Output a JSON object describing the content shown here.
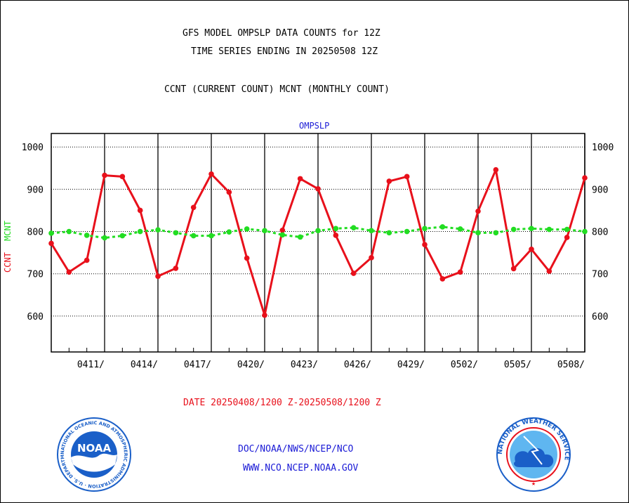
{
  "header": {
    "title_line1": "GFS MODEL OMPSLP DATA COUNTS for 12Z",
    "title_line2": "TIME SERIES ENDING IN 20250508 12Z",
    "subtitle": "CCNT (CURRENT COUNT) MCNT (MONTHLY COUNT)"
  },
  "footer": {
    "date_range": "DATE 20250408/1200 Z-20250508/1200 Z",
    "link1": "DOC/NOAA/NWS/NCEP/NCO",
    "link2": "WWW.NCO.NCEP.NOAA.GOV"
  },
  "logos": {
    "noaa": "NOAA",
    "noaa_ring": "NATIONAL OCEANIC AND ATMOSPHERIC ADMINISTRATION · U.S. DEPARTMENT OF COMMERCE ·",
    "nws_ring": "NATIONAL WEATHER SERVICE"
  },
  "colors": {
    "ccnt": "#e8101b",
    "mcnt": "#22dd22",
    "label_blue": "#1a1ad6",
    "logo_blue": "#1a5fc8",
    "axis": "#000000"
  },
  "chart_data": {
    "type": "line",
    "title": "OMPSLP",
    "ylabel_ccnt": "CCNT",
    "ylabel_mcnt": "MCNT",
    "ylim": [
      515,
      1032
    ],
    "yticks": [
      600,
      700,
      800,
      900,
      1000
    ],
    "x_start": "2025-04-08 12Z",
    "x_end": "2025-05-08 12Z",
    "xtick_labels": [
      "0411/",
      "0414/",
      "0417/",
      "0420/",
      "0423/",
      "0426/",
      "0429/",
      "0502/",
      "0505/",
      "0508/"
    ],
    "x": [
      "0408",
      "0409",
      "0410",
      "0411",
      "0412",
      "0413",
      "0414",
      "0415",
      "0416",
      "0417",
      "0418",
      "0419",
      "0420",
      "0421",
      "0422",
      "0423",
      "0424",
      "0425",
      "0426",
      "0427",
      "0428",
      "0429",
      "0430",
      "0501",
      "0502",
      "0503",
      "0504",
      "0505",
      "0506",
      "0507",
      "0508"
    ],
    "grid": true,
    "series": [
      {
        "name": "CCNT",
        "style": "solid",
        "values": [
          772,
          704,
          732,
          933,
          930,
          850,
          694,
          713,
          857,
          936,
          893,
          737,
          602,
          803,
          925,
          901,
          791,
          701,
          738,
          919,
          930,
          769,
          688,
          704,
          848,
          946,
          712,
          758,
          706,
          786,
          927
        ]
      },
      {
        "name": "MCNT",
        "style": "dashed",
        "values": [
          796,
          800,
          791,
          785,
          790,
          800,
          804,
          797,
          790,
          790,
          799,
          806,
          802,
          792,
          787,
          802,
          807,
          809,
          802,
          797,
          800,
          807,
          811,
          806,
          797,
          797,
          805,
          807,
          805,
          805,
          800
        ]
      }
    ]
  }
}
